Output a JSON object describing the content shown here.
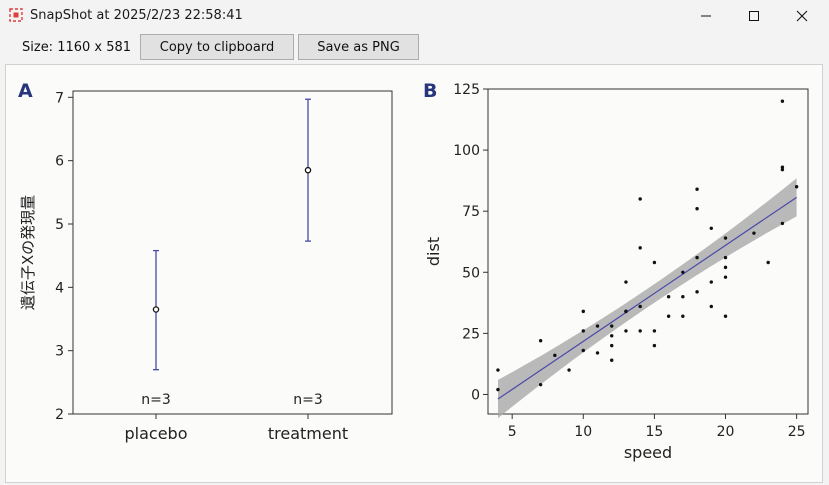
{
  "window": {
    "title": "SnapShot at 2025/2/23 22:58:41",
    "icon": "snapshot-icon",
    "controls": [
      "minimize-icon",
      "maximize-icon",
      "close-icon"
    ]
  },
  "toolbar": {
    "size_label": "Size: 1160 x 581",
    "copy_label": "Copy to clipboard",
    "save_label": "Save as PNG"
  },
  "colors": {
    "accent_line": "#4a4aa8",
    "ribbon": "#a9a9a9"
  },
  "chart_data": [
    {
      "type": "errorbar",
      "panel_label": "A",
      "ylabel": "遺伝子Xの発現量",
      "xlabel": "",
      "categories": [
        "placebo",
        "treatment"
      ],
      "mean": [
        3.65,
        5.85
      ],
      "lower": [
        2.7,
        4.73
      ],
      "upper": [
        4.58,
        6.97
      ],
      "n_labels": [
        "n=3",
        "n=3"
      ],
      "ylim": [
        2,
        7.1
      ],
      "yticks": [
        2,
        3,
        4,
        5,
        6,
        7
      ],
      "grid": false
    },
    {
      "type": "scatter",
      "panel_label": "B",
      "xlabel": "speed",
      "ylabel": "dist",
      "xlim": [
        3.3,
        25.8
      ],
      "ylim": [
        -8,
        125
      ],
      "xticks": [
        5,
        10,
        15,
        20,
        25
      ],
      "yticks": [
        0,
        25,
        50,
        75,
        100,
        125
      ],
      "grid": false,
      "points": [
        [
          4,
          2
        ],
        [
          4,
          10
        ],
        [
          7,
          4
        ],
        [
          7,
          22
        ],
        [
          8,
          16
        ],
        [
          9,
          10
        ],
        [
          10,
          18
        ],
        [
          10,
          26
        ],
        [
          10,
          34
        ],
        [
          11,
          17
        ],
        [
          11,
          28
        ],
        [
          12,
          14
        ],
        [
          12,
          20
        ],
        [
          12,
          24
        ],
        [
          12,
          28
        ],
        [
          13,
          26
        ],
        [
          13,
          34
        ],
        [
          13,
          34
        ],
        [
          13,
          46
        ],
        [
          14,
          26
        ],
        [
          14,
          36
        ],
        [
          14,
          60
        ],
        [
          14,
          80
        ],
        [
          15,
          20
        ],
        [
          15,
          26
        ],
        [
          15,
          54
        ],
        [
          16,
          32
        ],
        [
          16,
          40
        ],
        [
          17,
          32
        ],
        [
          17,
          40
        ],
        [
          17,
          50
        ],
        [
          18,
          42
        ],
        [
          18,
          56
        ],
        [
          18,
          76
        ],
        [
          18,
          84
        ],
        [
          19,
          36
        ],
        [
          19,
          46
        ],
        [
          19,
          68
        ],
        [
          20,
          32
        ],
        [
          20,
          48
        ],
        [
          20,
          52
        ],
        [
          20,
          56
        ],
        [
          20,
          64
        ],
        [
          22,
          66
        ],
        [
          23,
          54
        ],
        [
          24,
          70
        ],
        [
          24,
          92
        ],
        [
          24,
          93
        ],
        [
          24,
          120
        ],
        [
          25,
          85
        ]
      ],
      "fit": {
        "intercept": -17.58,
        "slope": 3.93,
        "x_range": [
          4,
          25
        ]
      },
      "ci_band": {
        "half_width_center": 3.8,
        "half_width_ends": 7.8
      }
    }
  ]
}
